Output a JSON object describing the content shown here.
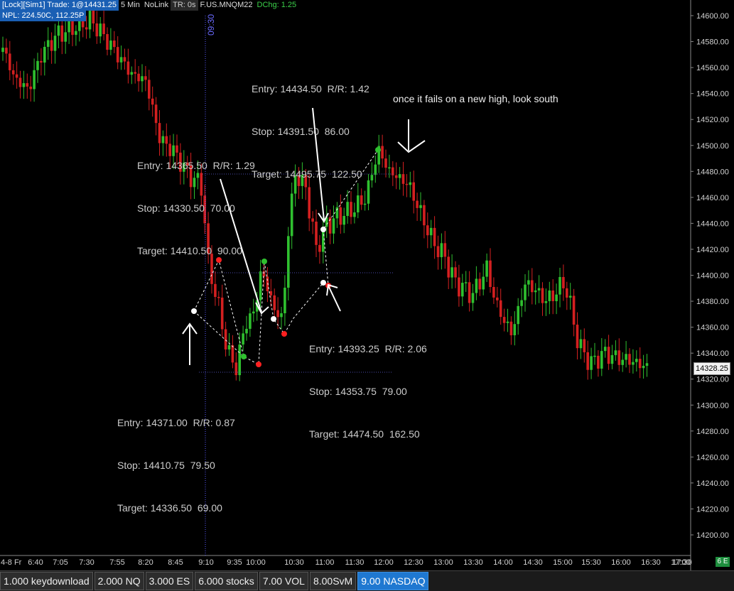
{
  "header": {
    "line1": [
      {
        "text": "[Lock][Sim1]  Trade: 1@14431.25",
        "style": "blue"
      },
      {
        "text": "5 Min",
        "style": "plain"
      },
      {
        "text": "NoLink",
        "style": "plain"
      },
      {
        "text": "TR: 0s",
        "style": "dim"
      },
      {
        "text": "F.US.MNQM22",
        "style": "plain"
      },
      {
        "text": "DChg: 1.25",
        "style": "green"
      }
    ],
    "line2": "NPL: 224.50C, 112.25P"
  },
  "session_label": "09:30",
  "price_axis": {
    "labels": [
      "14600.00",
      "14580.00",
      "14560.00",
      "14540.00",
      "14520.00",
      "14500.00",
      "14480.00",
      "14460.00",
      "14440.00",
      "14420.00",
      "14400.00",
      "14380.00",
      "14360.00",
      "14340.00",
      "14320.00",
      "14300.00",
      "14280.00",
      "14260.00",
      "14240.00",
      "14220.00",
      "14200.00"
    ],
    "last_price": "14328.25"
  },
  "time_axis": {
    "labels": [
      "4-8 Fr",
      "6:40",
      "7:05",
      "7:30",
      "7:55",
      "8:20",
      "8:45",
      "9:10",
      "9:35",
      "10:00",
      "10:30",
      "11:00",
      "11:30",
      "12:00",
      "12:30",
      "13:00",
      "13:30",
      "14:00",
      "14:30",
      "15:00",
      "15:30",
      "16:00",
      "16:30",
      "17:00",
      "17:30"
    ]
  },
  "corner_badge": "6 E",
  "annotations": {
    "trade1": {
      "entry": "Entry: 14365.50  R/R: 1.29",
      "stop": "Stop: 14330.50  70.00",
      "target": "Target: 14410.50  90.00"
    },
    "trade2": {
      "entry": "Entry: 14434.50  R/R: 1.42",
      "stop": "Stop: 14391.50  86.00",
      "target": "Target: 14495.75  122.50"
    },
    "trade3": {
      "entry": "Entry: 14393.25  R/R: 2.06",
      "stop": "Stop: 14353.75  79.00",
      "target": "Target: 14474.50  162.50"
    },
    "trade4": {
      "entry": "Entry: 14371.00  R/R: 0.87",
      "stop": "Stop: 14410.75  79.50",
      "target": "Target: 14336.50  69.00"
    },
    "note": "once it fails on a new high, look south"
  },
  "tabs": [
    {
      "label": "1.000 keydownload",
      "active": false
    },
    {
      "label": "2.000 NQ",
      "active": false
    },
    {
      "label": "3.000 ES",
      "active": false
    },
    {
      "label": "6.000 stocks",
      "active": false
    },
    {
      "label": "7.00 VOL",
      "active": false
    },
    {
      "label": "8.00SvM",
      "active": false
    },
    {
      "label": "9.00 NASDAQ",
      "active": true
    }
  ],
  "colors": {
    "up": "#2fc02f",
    "down": "#d42020",
    "axis_text": "#d0d0d0",
    "session_line": "#5a5aff",
    "tab_active": "#1f78d1"
  }
}
